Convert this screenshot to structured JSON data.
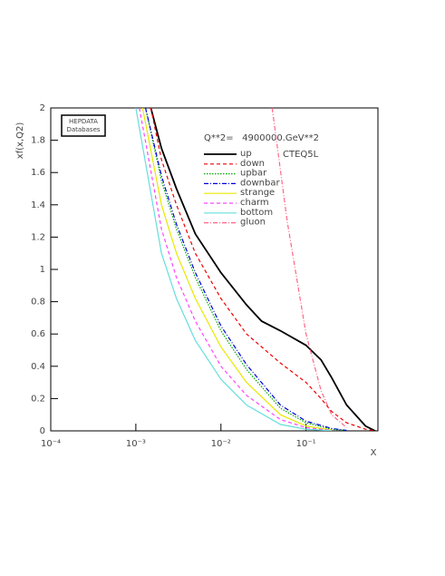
{
  "chart_data": {
    "type": "line",
    "logo": [
      "HEPDATA",
      "Databases"
    ],
    "annotation": "Q**2=   4900000.GeV**2",
    "pdf_set": "CTEQ5L",
    "y_label": "xf(x,Q2)",
    "x_label": "X",
    "xscale": "log",
    "xlim": [
      0.0001,
      0.7
    ],
    "ylim": [
      0,
      2
    ],
    "xticks": [
      {
        "value": 0.0001,
        "label": "10⁻⁴"
      },
      {
        "value": 0.001,
        "label": "10⁻³"
      },
      {
        "value": 0.01,
        "label": "10⁻²"
      },
      {
        "value": 0.1,
        "label": "10⁻¹"
      }
    ],
    "yticks": [
      0,
      0.2,
      0.4,
      0.6,
      0.8,
      1,
      1.2,
      1.4,
      1.6,
      1.8,
      2
    ],
    "series": [
      {
        "name": "up",
        "color": "#000000",
        "style": "solid",
        "x": [
          0.0015,
          0.002,
          0.003,
          0.005,
          0.01,
          0.02,
          0.03,
          0.05,
          0.1,
          0.15,
          0.2,
          0.3,
          0.5,
          0.65
        ],
        "values": [
          2,
          1.75,
          1.5,
          1.22,
          0.98,
          0.78,
          0.68,
          0.62,
          0.53,
          0.44,
          0.33,
          0.16,
          0.03,
          0
        ]
      },
      {
        "name": "down",
        "color": "#ee0000",
        "style": "dashed",
        "x": [
          0.0015,
          0.002,
          0.003,
          0.005,
          0.01,
          0.02,
          0.05,
          0.1,
          0.15,
          0.2,
          0.3,
          0.5,
          0.65
        ],
        "values": [
          2,
          1.68,
          1.4,
          1.1,
          0.82,
          0.6,
          0.42,
          0.3,
          0.2,
          0.12,
          0.05,
          0.01,
          0
        ]
      },
      {
        "name": "upbar",
        "color": "#00aa00",
        "style": "dotted",
        "x": [
          0.0013,
          0.002,
          0.003,
          0.005,
          0.01,
          0.02,
          0.05,
          0.1,
          0.2,
          0.3
        ],
        "values": [
          2,
          1.55,
          1.25,
          0.95,
          0.62,
          0.38,
          0.14,
          0.05,
          0.01,
          0.002
        ]
      },
      {
        "name": "downbar",
        "color": "#0000dd",
        "style": "dashdot",
        "x": [
          0.0013,
          0.002,
          0.003,
          0.005,
          0.01,
          0.02,
          0.05,
          0.1,
          0.2,
          0.3
        ],
        "values": [
          2,
          1.58,
          1.28,
          0.98,
          0.65,
          0.41,
          0.16,
          0.06,
          0.015,
          0.003
        ]
      },
      {
        "name": "strange",
        "color": "#e8e800",
        "style": "solid",
        "x": [
          0.0012,
          0.002,
          0.003,
          0.005,
          0.01,
          0.02,
          0.05,
          0.1,
          0.2
        ],
        "values": [
          2,
          1.4,
          1.1,
          0.82,
          0.52,
          0.3,
          0.1,
          0.03,
          0.005
        ]
      },
      {
        "name": "charm",
        "color": "#ff44ff",
        "style": "dashed",
        "x": [
          0.0011,
          0.002,
          0.003,
          0.005,
          0.01,
          0.02,
          0.05,
          0.1,
          0.2
        ],
        "values": [
          2,
          1.25,
          0.95,
          0.68,
          0.4,
          0.22,
          0.07,
          0.02,
          0.003
        ]
      },
      {
        "name": "bottom",
        "color": "#66dddd",
        "style": "solid",
        "x": [
          0.001,
          0.002,
          0.003,
          0.005,
          0.01,
          0.02,
          0.05,
          0.1,
          0.2
        ],
        "values": [
          2,
          1.1,
          0.82,
          0.56,
          0.32,
          0.16,
          0.04,
          0.01,
          0.001
        ]
      },
      {
        "name": "gluon",
        "color": "#ff6688",
        "style": "dashdot",
        "x": [
          0.04,
          0.06,
          0.1,
          0.15,
          0.2,
          0.3
        ],
        "values": [
          2,
          1.3,
          0.6,
          0.25,
          0.1,
          0.02
        ]
      }
    ]
  }
}
